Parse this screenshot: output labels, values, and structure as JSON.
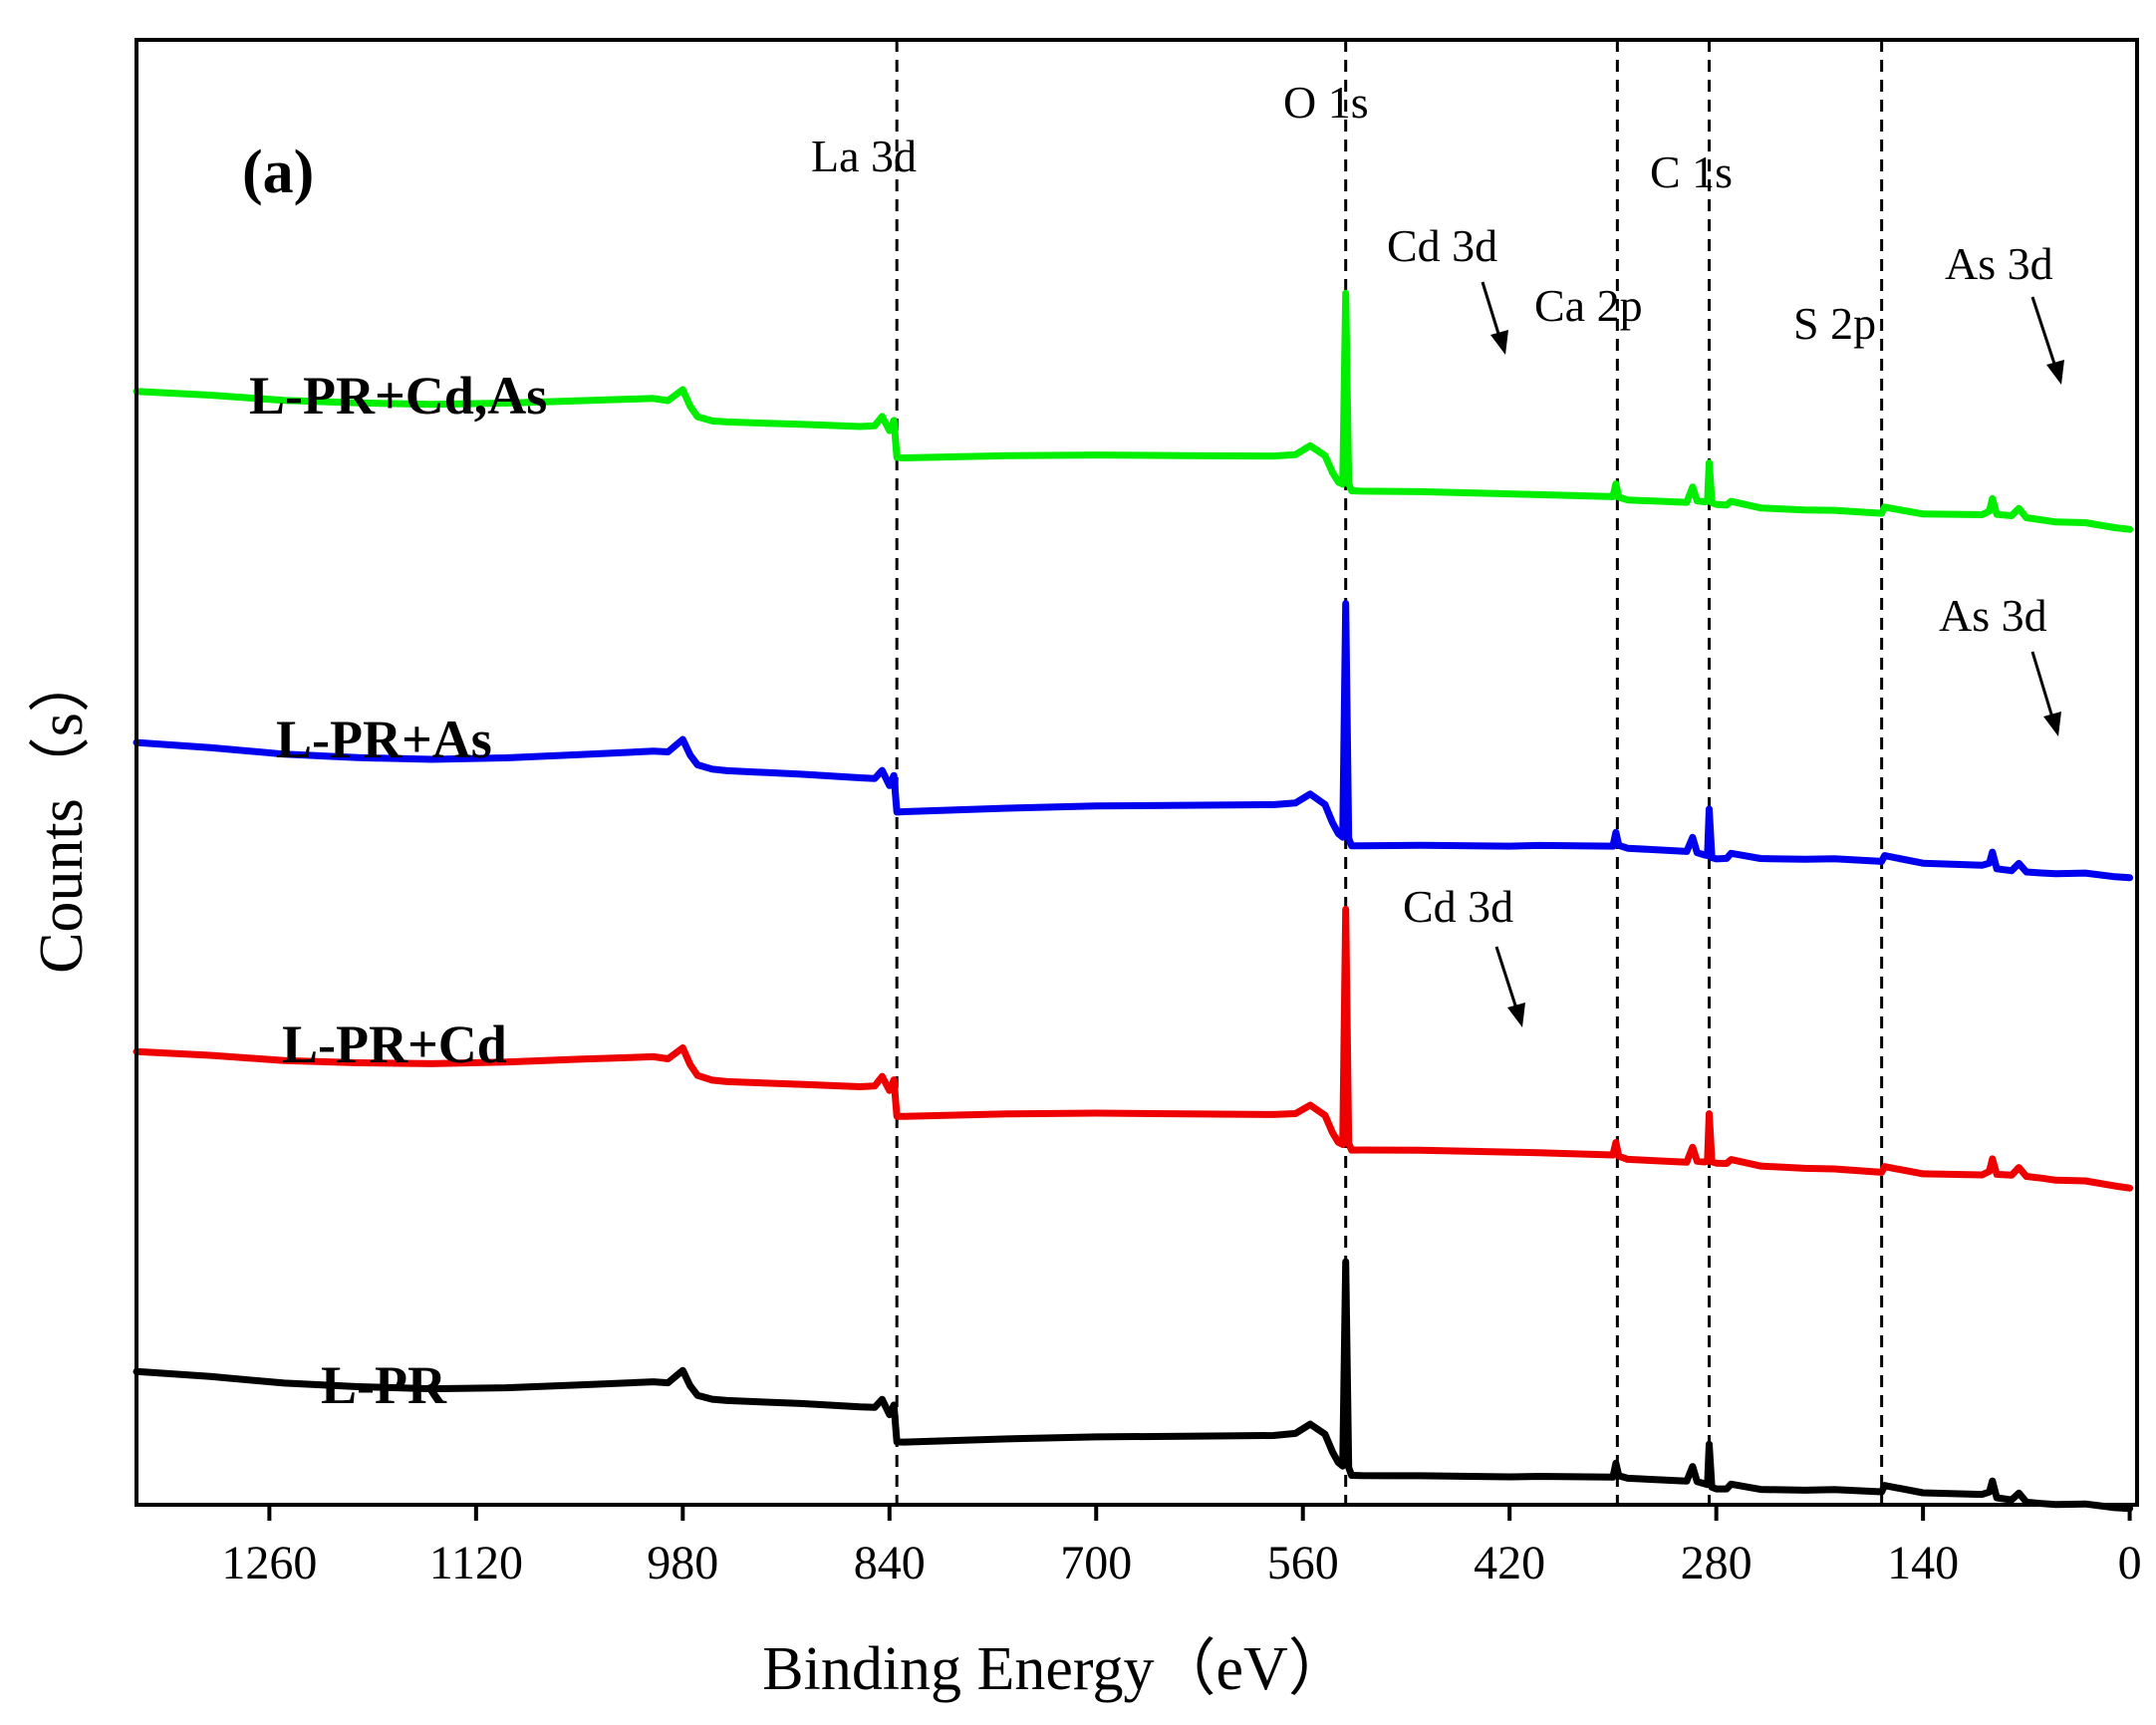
{
  "chart_data": {
    "type": "line",
    "panel_label": "(a)",
    "xlabel": "Binding Energy（eV）",
    "ylabel": "Counts（s）",
    "xlim": [
      1350,
      -5
    ],
    "x_reversed": true,
    "xticks": [
      1260,
      1120,
      980,
      840,
      700,
      560,
      420,
      280,
      140,
      0
    ],
    "xtick_labels": [
      "1260",
      "1120",
      "980",
      "840",
      "700",
      "560",
      "420",
      "280",
      "140",
      "0"
    ],
    "ylim": [
      0,
      100
    ],
    "y_unit": "arbitrary, offset per series",
    "reference_lines": [
      {
        "name": "La 3d",
        "x": 835
      },
      {
        "name": "O 1s",
        "x": 531
      },
      {
        "name": "Ca 2p",
        "x": 347
      },
      {
        "name": "C 1s",
        "x": 284.8
      },
      {
        "name": "S 2p",
        "x": 168
      }
    ],
    "peak_labels": {
      "la3d": "La 3d",
      "o1s": "O 1s",
      "c1s": "C 1s",
      "ca2p": "Ca 2p",
      "s2p": "S 2p",
      "cd3d_top": "Cd 3d",
      "as3d_top": "As 3d",
      "as3d_mid": "As 3d",
      "cd3d_low": "Cd 3d"
    },
    "series": [
      {
        "name": "L-PR+Cd,As",
        "color": "#00ee00",
        "baseline": 76,
        "o1s_height": 13
      },
      {
        "name": "L-PR+As",
        "color": "#0000ee",
        "baseline": 52,
        "o1s_height": 16
      },
      {
        "name": "L-PR+Cd",
        "color": "#ee0000",
        "baseline": 31,
        "o1s_height": 16
      },
      {
        "name": "L-PR",
        "color": "#000000",
        "baseline": 9,
        "o1s_height": 14
      }
    ],
    "spectrum_profile": {
      "x": [
        1350,
        1300,
        1250,
        1200,
        1150,
        1100,
        1050,
        1000,
        990,
        980,
        975,
        970,
        960,
        950,
        900,
        860,
        850,
        845,
        840,
        837,
        835,
        830,
        760,
        700,
        640,
        580,
        565,
        555,
        545,
        540,
        536,
        533,
        531,
        529,
        527,
        520,
        480,
        420,
        400,
        350,
        348,
        346,
        340,
        300,
        296,
        293,
        288,
        286,
        284.8,
        283,
        280,
        273,
        270,
        250,
        220,
        200,
        168,
        166,
        140,
        100,
        95,
        93,
        90,
        80,
        75,
        70,
        60,
        50,
        30,
        10,
        0
      ],
      "y": [
        0,
        -0.3,
        -0.7,
        -0.9,
        -1.0,
        -0.9,
        -0.7,
        -0.5,
        -0.6,
        0.2,
        -0.9,
        -1.6,
        -1.9,
        -2.0,
        -2.2,
        -2.4,
        -2.4,
        -1.8,
        -2.8,
        -2.1,
        -4.6,
        -4.6,
        -4.4,
        -4.3,
        -4.3,
        -4.3,
        -4.2,
        -3.6,
        -4.3,
        -5.5,
        -6.2,
        -6.4,
        "PEAK",
        -6.4,
        -6.9,
        -6.9,
        -6.9,
        -7.0,
        -7.0,
        -7.1,
        -6.2,
        -7.1,
        -7.3,
        -7.5,
        -6.5,
        -7.5,
        -7.6,
        -7.6,
        "C1S",
        -7.7,
        -7.8,
        -7.8,
        -7.5,
        -7.9,
        -8.0,
        -8.0,
        -8.2,
        -7.8,
        -8.3,
        -8.4,
        -8.2,
        -7.4,
        -8.5,
        -8.6,
        -8.1,
        -8.7,
        -8.8,
        -8.9,
        -8.9,
        -9.2,
        -9.3
      ]
    }
  }
}
